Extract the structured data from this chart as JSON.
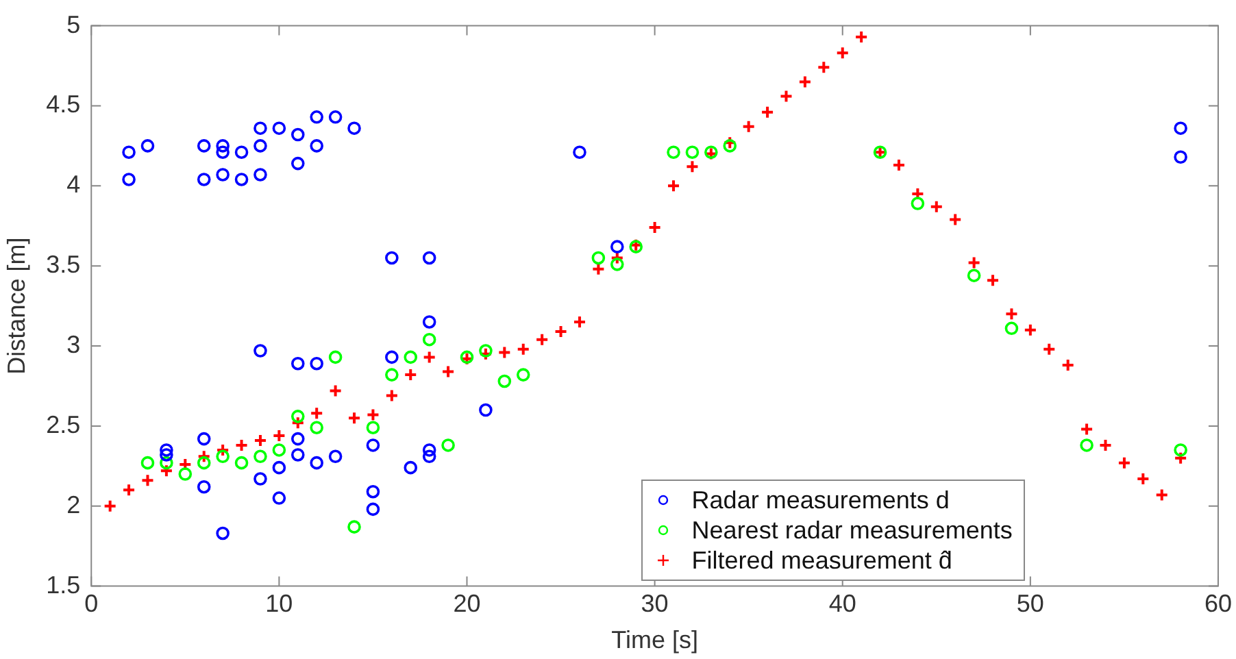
{
  "chart_data": {
    "type": "scatter",
    "xlabel": "Time [s]",
    "ylabel": "Distance [m]",
    "xlim": [
      0,
      60
    ],
    "xticks": [
      0,
      10,
      20,
      30,
      40,
      50,
      60
    ],
    "ylim": [
      1.5,
      5
    ],
    "yticks": [
      1.5,
      2,
      2.5,
      3,
      3.5,
      4,
      4.5,
      5
    ],
    "grid": false,
    "legend": "bottom",
    "series": [
      {
        "name": "Radar measurements  d",
        "color": "#0000ff",
        "marker": "circle",
        "x": [
          2,
          2,
          3,
          6,
          6,
          7,
          7,
          7,
          8,
          8,
          9,
          9,
          9,
          10,
          11,
          11,
          12,
          12,
          13,
          14,
          26,
          4,
          4,
          6,
          6,
          7,
          9,
          9,
          10,
          10,
          11,
          11,
          11,
          12,
          12,
          13,
          15,
          15,
          15,
          16,
          16,
          17,
          18,
          18,
          18,
          18,
          21,
          28,
          58,
          58
        ],
        "values": [
          4.21,
          4.04,
          4.25,
          4.25,
          4.04,
          4.25,
          4.21,
          4.07,
          4.21,
          4.04,
          4.36,
          4.25,
          4.07,
          4.36,
          4.32,
          4.14,
          4.43,
          4.25,
          4.43,
          4.36,
          4.21,
          2.35,
          2.32,
          2.42,
          2.12,
          1.83,
          2.97,
          2.17,
          2.24,
          2.05,
          2.89,
          2.42,
          2.32,
          2.89,
          2.27,
          2.31,
          2.38,
          2.09,
          1.98,
          3.55,
          2.93,
          2.24,
          3.55,
          3.15,
          2.35,
          2.31,
          2.6,
          3.62,
          4.36,
          4.18
        ]
      },
      {
        "name": "Nearest radar measurements",
        "color": "#00ff00",
        "marker": "circle",
        "x": [
          3,
          4,
          5,
          6,
          7,
          8,
          9,
          10,
          11,
          12,
          13,
          14,
          15,
          16,
          17,
          18,
          19,
          20,
          21,
          22,
          23,
          27,
          28,
          29,
          31,
          32,
          33,
          34,
          42,
          44,
          47,
          49,
          53,
          58
        ],
        "values": [
          2.27,
          2.27,
          2.2,
          2.27,
          2.31,
          2.27,
          2.31,
          2.35,
          2.56,
          2.49,
          2.93,
          1.87,
          2.49,
          2.82,
          2.93,
          3.04,
          2.38,
          2.93,
          2.97,
          2.78,
          2.82,
          3.55,
          3.51,
          3.62,
          4.21,
          4.21,
          4.21,
          4.25,
          4.21,
          3.89,
          3.44,
          3.11,
          2.38,
          2.35
        ]
      },
      {
        "name": "Filtered measurement  d̂",
        "color": "#ff0000",
        "marker": "cross",
        "x": [
          1,
          2,
          3,
          4,
          5,
          6,
          7,
          8,
          9,
          10,
          11,
          12,
          13,
          14,
          15,
          16,
          17,
          18,
          19,
          20,
          21,
          22,
          23,
          24,
          25,
          26,
          27,
          28,
          29,
          30,
          31,
          32,
          33,
          34,
          35,
          36,
          37,
          38,
          39,
          40,
          41,
          42,
          43,
          44,
          45,
          46,
          47,
          48,
          49,
          50,
          51,
          52,
          53,
          54,
          55,
          56,
          57,
          58
        ],
        "values": [
          2.0,
          2.1,
          2.16,
          2.22,
          2.26,
          2.31,
          2.35,
          2.38,
          2.41,
          2.44,
          2.52,
          2.58,
          2.72,
          2.55,
          2.57,
          2.69,
          2.82,
          2.93,
          2.84,
          2.92,
          2.95,
          2.96,
          2.98,
          3.04,
          3.09,
          3.15,
          3.48,
          3.55,
          3.63,
          3.74,
          4.0,
          4.12,
          4.2,
          4.27,
          4.37,
          4.46,
          4.56,
          4.65,
          4.74,
          4.83,
          4.93,
          4.21,
          4.13,
          3.95,
          3.87,
          3.79,
          3.52,
          3.41,
          3.2,
          3.1,
          2.98,
          2.88,
          2.48,
          2.38,
          2.27,
          2.17,
          2.07,
          2.3
        ]
      }
    ]
  }
}
